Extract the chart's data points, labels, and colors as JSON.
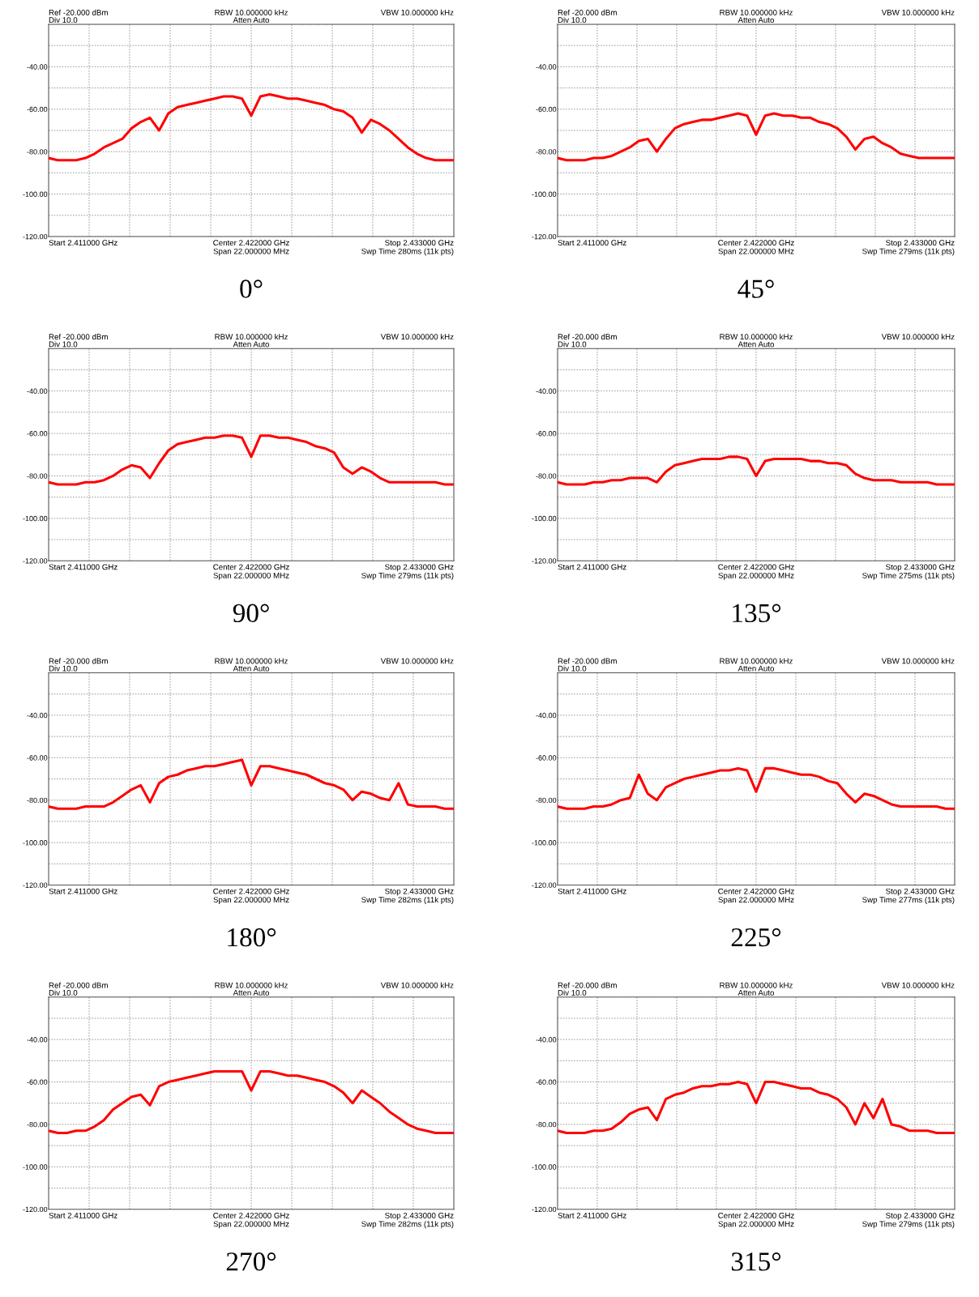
{
  "chart_data": [
    {
      "type": "line",
      "title": "0°",
      "ylim": [
        -120,
        -20
      ],
      "categories": [
        null,
        null,
        null,
        null,
        null,
        null,
        null,
        null,
        null,
        null,
        null,
        null,
        null,
        null,
        null,
        null,
        null,
        null,
        null,
        null,
        null,
        null,
        null,
        null,
        null,
        null,
        null,
        null,
        null,
        null,
        null,
        null,
        null,
        null,
        null,
        null,
        null,
        null,
        null,
        null,
        null,
        null,
        null,
        null,
        null
      ],
      "series": [
        {
          "color": "#ff0000",
          "values": [
            -83,
            -84,
            -84,
            -84,
            -83,
            -81,
            -78,
            -76,
            -74,
            -69,
            -66,
            -64,
            -70,
            -62,
            -59,
            -58,
            -57,
            -56,
            -55,
            -54,
            -54,
            -55,
            -63,
            -54,
            -53,
            -54,
            -55,
            -55,
            -56,
            -57,
            -58,
            -60,
            -61,
            -64,
            -71,
            -65,
            -67,
            -70,
            -74,
            -78,
            -81,
            -83,
            -84,
            -84,
            -84
          ]
        }
      ],
      "yticks": [
        {
          "value": -20,
          "label": null
        },
        {
          "value": -30,
          "label": null
        },
        {
          "value": -40,
          "label": "-40.00"
        },
        {
          "value": -50,
          "label": null
        },
        {
          "value": -60,
          "label": "-60.00"
        },
        {
          "value": -70,
          "label": null
        },
        {
          "value": -80,
          "label": "-80.00"
        },
        {
          "value": -90,
          "label": null
        },
        {
          "value": -100,
          "label": "-100.00"
        },
        {
          "value": -110,
          "label": null
        },
        {
          "value": -120,
          "label": "-120.00"
        }
      ],
      "tick_labels": "y",
      "grid": true,
      "annotations": [
        "Ref -20.000 dBm",
        "Div 10.0",
        "RBW 10.000000 kHz",
        "Atten Auto",
        "VBW 10.000000 kHz",
        "Start 2.411000 GHz",
        "Center 2.422000 GHz",
        "Span 22.000000 MHz",
        "Stop 2.433000 GHz",
        "Swp Time 280ms (11k pts)"
      ]
    },
    {
      "type": "line",
      "title": "45°",
      "ylim": [
        -120,
        -20
      ],
      "categories": [
        null,
        null,
        null,
        null,
        null,
        null,
        null,
        null,
        null,
        null,
        null,
        null,
        null,
        null,
        null,
        null,
        null,
        null,
        null,
        null,
        null,
        null,
        null,
        null,
        null,
        null,
        null,
        null,
        null,
        null,
        null,
        null,
        null,
        null,
        null,
        null,
        null,
        null,
        null,
        null,
        null,
        null,
        null,
        null,
        null
      ],
      "series": [
        {
          "color": "#ff0000",
          "values": [
            -83,
            -84,
            -84,
            -84,
            -83,
            -83,
            -82,
            -80,
            -78,
            -75,
            -74,
            -80,
            -74,
            -69,
            -67,
            -66,
            -65,
            -65,
            -64,
            -63,
            -62,
            -63,
            -72,
            -63,
            -62,
            -63,
            -63,
            -64,
            -64,
            -66,
            -67,
            -69,
            -73,
            -79,
            -74,
            -73,
            -76,
            -78,
            -81,
            -82,
            -83,
            -83,
            -83,
            -83,
            -83
          ]
        }
      ],
      "yticks": [
        {
          "value": -20,
          "label": null
        },
        {
          "value": -30,
          "label": null
        },
        {
          "value": -40,
          "label": "-40.00"
        },
        {
          "value": -50,
          "label": null
        },
        {
          "value": -60,
          "label": "-60.00"
        },
        {
          "value": -70,
          "label": null
        },
        {
          "value": -80,
          "label": "-80.00"
        },
        {
          "value": -90,
          "label": null
        },
        {
          "value": -100,
          "label": "-100.00"
        },
        {
          "value": -110,
          "label": null
        },
        {
          "value": -120,
          "label": "-120.00"
        }
      ],
      "tick_labels": "y",
      "grid": true,
      "annotations": [
        "Ref -20.000 dBm",
        "Div 10.0",
        "RBW 10.000000 kHz",
        "Atten Auto",
        "VBW 10.000000 kHz",
        "Start 2.411000 GHz",
        "Center 2.422000 GHz",
        "Span 22.000000 MHz",
        "Stop 2.433000 GHz",
        "Swp Time 279ms (11k pts)"
      ]
    },
    {
      "type": "line",
      "title": "90°",
      "ylim": [
        -120,
        -20
      ],
      "categories": [
        null,
        null,
        null,
        null,
        null,
        null,
        null,
        null,
        null,
        null,
        null,
        null,
        null,
        null,
        null,
        null,
        null,
        null,
        null,
        null,
        null,
        null,
        null,
        null,
        null,
        null,
        null,
        null,
        null,
        null,
        null,
        null,
        null,
        null,
        null,
        null,
        null,
        null,
        null,
        null,
        null,
        null,
        null,
        null,
        null
      ],
      "series": [
        {
          "color": "#ff0000",
          "values": [
            -83,
            -84,
            -84,
            -84,
            -83,
            -83,
            -82,
            -80,
            -77,
            -75,
            -76,
            -81,
            -74,
            -68,
            -65,
            -64,
            -63,
            -62,
            -62,
            -61,
            -61,
            -62,
            -71,
            -61,
            -61,
            -62,
            -62,
            -63,
            -64,
            -66,
            -67,
            -69,
            -76,
            -79,
            -76,
            -78,
            -81,
            -83,
            -83,
            -83,
            -83,
            -83,
            -83,
            -84,
            -84
          ]
        }
      ],
      "yticks": [
        {
          "value": -20,
          "label": null
        },
        {
          "value": -30,
          "label": null
        },
        {
          "value": -40,
          "label": "-40.00"
        },
        {
          "value": -50,
          "label": null
        },
        {
          "value": -60,
          "label": "-60.00"
        },
        {
          "value": -70,
          "label": null
        },
        {
          "value": -80,
          "label": "-80.00"
        },
        {
          "value": -90,
          "label": null
        },
        {
          "value": -100,
          "label": "-100.00"
        },
        {
          "value": -110,
          "label": null
        },
        {
          "value": -120,
          "label": "-120.00"
        }
      ],
      "tick_labels": "y",
      "grid": true,
      "annotations": [
        "Ref -20.000 dBm",
        "Div 10.0",
        "RBW 10.000000 kHz",
        "Atten Auto",
        "VBW 10.000000 kHz",
        "Start 2.411000 GHz",
        "Center 2.422000 GHz",
        "Span 22.000000 MHz",
        "Stop 2.433000 GHz",
        "Swp Time 279ms (11k pts)"
      ]
    },
    {
      "type": "line",
      "title": "135°",
      "ylim": [
        -120,
        -20
      ],
      "categories": [
        null,
        null,
        null,
        null,
        null,
        null,
        null,
        null,
        null,
        null,
        null,
        null,
        null,
        null,
        null,
        null,
        null,
        null,
        null,
        null,
        null,
        null,
        null,
        null,
        null,
        null,
        null,
        null,
        null,
        null,
        null,
        null,
        null,
        null,
        null,
        null,
        null,
        null,
        null,
        null,
        null,
        null,
        null,
        null,
        null
      ],
      "series": [
        {
          "color": "#ff0000",
          "values": [
            -83,
            -84,
            -84,
            -84,
            -83,
            -83,
            -82,
            -82,
            -81,
            -81,
            -81,
            -83,
            -78,
            -75,
            -74,
            -73,
            -72,
            -72,
            -72,
            -71,
            -71,
            -72,
            -80,
            -73,
            -72,
            -72,
            -72,
            -72,
            -73,
            -73,
            -74,
            -74,
            -75,
            -79,
            -81,
            -82,
            -82,
            -82,
            -83,
            -83,
            -83,
            -83,
            -84,
            -84,
            -84
          ]
        }
      ],
      "yticks": [
        {
          "value": -20,
          "label": null
        },
        {
          "value": -30,
          "label": null
        },
        {
          "value": -40,
          "label": "-40.00"
        },
        {
          "value": -50,
          "label": null
        },
        {
          "value": -60,
          "label": "-60.00"
        },
        {
          "value": -70,
          "label": null
        },
        {
          "value": -80,
          "label": "-80.00"
        },
        {
          "value": -90,
          "label": null
        },
        {
          "value": -100,
          "label": "-100.00"
        },
        {
          "value": -110,
          "label": null
        },
        {
          "value": -120,
          "label": "-120.00"
        }
      ],
      "tick_labels": "y",
      "grid": true,
      "annotations": [
        "Ref -20.000 dBm",
        "Div 10.0",
        "RBW 10.000000 kHz",
        "Atten Auto",
        "VBW 10.000000 kHz",
        "Start 2.411000 GHz",
        "Center 2.422000 GHz",
        "Span 22.000000 MHz",
        "Stop 2.433000 GHz",
        "Swp Time 275ms (11k pts)"
      ]
    },
    {
      "type": "line",
      "title": "180°",
      "ylim": [
        -120,
        -20
      ],
      "categories": [
        null,
        null,
        null,
        null,
        null,
        null,
        null,
        null,
        null,
        null,
        null,
        null,
        null,
        null,
        null,
        null,
        null,
        null,
        null,
        null,
        null,
        null,
        null,
        null,
        null,
        null,
        null,
        null,
        null,
        null,
        null,
        null,
        null,
        null,
        null,
        null,
        null,
        null,
        null,
        null,
        null,
        null,
        null,
        null,
        null
      ],
      "series": [
        {
          "color": "#ff0000",
          "values": [
            -83,
            -84,
            -84,
            -84,
            -83,
            -83,
            -83,
            -81,
            -78,
            -75,
            -73,
            -81,
            -72,
            -69,
            -68,
            -66,
            -65,
            -64,
            -64,
            -63,
            -62,
            -61,
            -73,
            -64,
            -64,
            -65,
            -66,
            -67,
            -68,
            -70,
            -72,
            -73,
            -75,
            -80,
            -76,
            -77,
            -79,
            -80,
            -72,
            -82,
            -83,
            -83,
            -83,
            -84,
            -84
          ]
        }
      ],
      "yticks": [
        {
          "value": -20,
          "label": null
        },
        {
          "value": -30,
          "label": null
        },
        {
          "value": -40,
          "label": "-40.00"
        },
        {
          "value": -50,
          "label": null
        },
        {
          "value": -60,
          "label": "-60.00"
        },
        {
          "value": -70,
          "label": null
        },
        {
          "value": -80,
          "label": "-80.00"
        },
        {
          "value": -90,
          "label": null
        },
        {
          "value": -100,
          "label": "-100.00"
        },
        {
          "value": -110,
          "label": null
        },
        {
          "value": -120,
          "label": "-120.00"
        }
      ],
      "tick_labels": "y",
      "grid": true,
      "annotations": [
        "Ref -20.000 dBm",
        "Div 10.0",
        "RBW 10.000000 kHz",
        "Atten Auto",
        "VBW 10.000000 kHz",
        "Start 2.411000 GHz",
        "Center 2.422000 GHz",
        "Span 22.000000 MHz",
        "Stop 2.433000 GHz",
        "Swp Time 282ms (11k pts)"
      ]
    },
    {
      "type": "line",
      "title": "225°",
      "ylim": [
        -120,
        -20
      ],
      "categories": [
        null,
        null,
        null,
        null,
        null,
        null,
        null,
        null,
        null,
        null,
        null,
        null,
        null,
        null,
        null,
        null,
        null,
        null,
        null,
        null,
        null,
        null,
        null,
        null,
        null,
        null,
        null,
        null,
        null,
        null,
        null,
        null,
        null,
        null,
        null,
        null,
        null,
        null,
        null,
        null,
        null,
        null,
        null,
        null,
        null
      ],
      "series": [
        {
          "color": "#ff0000",
          "values": [
            -83,
            -84,
            -84,
            -84,
            -83,
            -83,
            -82,
            -80,
            -79,
            -68,
            -77,
            -80,
            -74,
            -72,
            -70,
            -69,
            -68,
            -67,
            -66,
            -66,
            -65,
            -66,
            -76,
            -65,
            -65,
            -66,
            -67,
            -68,
            -68,
            -69,
            -71,
            -72,
            -77,
            -81,
            -77,
            -78,
            -80,
            -82,
            -83,
            -83,
            -83,
            -83,
            -83,
            -84,
            -84
          ]
        }
      ],
      "yticks": [
        {
          "value": -20,
          "label": null
        },
        {
          "value": -30,
          "label": null
        },
        {
          "value": -40,
          "label": "-40.00"
        },
        {
          "value": -50,
          "label": null
        },
        {
          "value": -60,
          "label": "-60.00"
        },
        {
          "value": -70,
          "label": null
        },
        {
          "value": -80,
          "label": "-80.00"
        },
        {
          "value": -90,
          "label": null
        },
        {
          "value": -100,
          "label": "-100.00"
        },
        {
          "value": -110,
          "label": null
        },
        {
          "value": -120,
          "label": "-120.00"
        }
      ],
      "tick_labels": "y",
      "grid": true,
      "annotations": [
        "Ref -20.000 dBm",
        "Div 10.0",
        "RBW 10.000000 kHz",
        "Atten Auto",
        "VBW 10.000000 kHz",
        "Start 2.411000 GHz",
        "Center 2.422000 GHz",
        "Span 22.000000 MHz",
        "Stop 2.433000 GHz",
        "Swp Time 277ms (11k pts)"
      ]
    },
    {
      "type": "line",
      "title": "270°",
      "ylim": [
        -120,
        -20
      ],
      "categories": [
        null,
        null,
        null,
        null,
        null,
        null,
        null,
        null,
        null,
        null,
        null,
        null,
        null,
        null,
        null,
        null,
        null,
        null,
        null,
        null,
        null,
        null,
        null,
        null,
        null,
        null,
        null,
        null,
        null,
        null,
        null,
        null,
        null,
        null,
        null,
        null,
        null,
        null,
        null,
        null,
        null,
        null,
        null,
        null,
        null
      ],
      "series": [
        {
          "color": "#ff0000",
          "values": [
            -83,
            -84,
            -84,
            -83,
            -83,
            -81,
            -78,
            -73,
            -70,
            -67,
            -66,
            -71,
            -62,
            -60,
            -59,
            -58,
            -57,
            -56,
            -55,
            -55,
            -55,
            -55,
            -64,
            -55,
            -55,
            -56,
            -57,
            -57,
            -58,
            -59,
            -60,
            -62,
            -65,
            -70,
            -64,
            -67,
            -70,
            -74,
            -77,
            -80,
            -82,
            -83,
            -84,
            -84,
            -84
          ]
        }
      ],
      "yticks": [
        {
          "value": -20,
          "label": null
        },
        {
          "value": -30,
          "label": null
        },
        {
          "value": -40,
          "label": "-40.00"
        },
        {
          "value": -50,
          "label": null
        },
        {
          "value": -60,
          "label": "-60.00"
        },
        {
          "value": -70,
          "label": null
        },
        {
          "value": -80,
          "label": "-80.00"
        },
        {
          "value": -90,
          "label": null
        },
        {
          "value": -100,
          "label": "-100.00"
        },
        {
          "value": -110,
          "label": null
        },
        {
          "value": -120,
          "label": "-120.00"
        }
      ],
      "tick_labels": "y",
      "grid": true,
      "annotations": [
        "Ref -20.000 dBm",
        "Div 10.0",
        "RBW 10.000000 kHz",
        "Atten Auto",
        "VBW 10.000000 kHz",
        "Start 2.411000 GHz",
        "Center 2.422000 GHz",
        "Span 22.000000 MHz",
        "Stop 2.433000 GHz",
        "Swp Time 282ms (11k pts)"
      ]
    },
    {
      "type": "line",
      "title": "315°",
      "ylim": [
        -120,
        -20
      ],
      "categories": [
        null,
        null,
        null,
        null,
        null,
        null,
        null,
        null,
        null,
        null,
        null,
        null,
        null,
        null,
        null,
        null,
        null,
        null,
        null,
        null,
        null,
        null,
        null,
        null,
        null,
        null,
        null,
        null,
        null,
        null,
        null,
        null,
        null,
        null,
        null,
        null,
        null,
        null,
        null,
        null,
        null,
        null,
        null,
        null,
        null
      ],
      "series": [
        {
          "color": "#ff0000",
          "values": [
            -83,
            -84,
            -84,
            -84,
            -83,
            -83,
            -82,
            -79,
            -75,
            -73,
            -72,
            -78,
            -68,
            -66,
            -65,
            -63,
            -62,
            -62,
            -61,
            -61,
            -60,
            -61,
            -70,
            -60,
            -60,
            -61,
            -62,
            -63,
            -63,
            -65,
            -66,
            -68,
            -72,
            -80,
            -70,
            -77,
            -68,
            -80,
            -81,
            -83,
            -83,
            -83,
            -84,
            -84,
            -84
          ]
        }
      ],
      "yticks": [
        {
          "value": -20,
          "label": null
        },
        {
          "value": -30,
          "label": null
        },
        {
          "value": -40,
          "label": "-40.00"
        },
        {
          "value": -50,
          "label": null
        },
        {
          "value": -60,
          "label": "-60.00"
        },
        {
          "value": -70,
          "label": null
        },
        {
          "value": -80,
          "label": "-80.00"
        },
        {
          "value": -90,
          "label": null
        },
        {
          "value": -100,
          "label": "-100.00"
        },
        {
          "value": -110,
          "label": null
        },
        {
          "value": -120,
          "label": "-120.00"
        }
      ],
      "tick_labels": "y",
      "grid": true,
      "annotations": [
        "Ref -20.000 dBm",
        "Div 10.0",
        "RBW 10.000000 kHz",
        "Atten Auto",
        "VBW 10.000000 kHz",
        "Start 2.411000 GHz",
        "Center 2.422000 GHz",
        "Span 22.000000 MHz",
        "Stop 2.433000 GHz",
        "Swp Time 279ms (11k pts)"
      ]
    }
  ]
}
